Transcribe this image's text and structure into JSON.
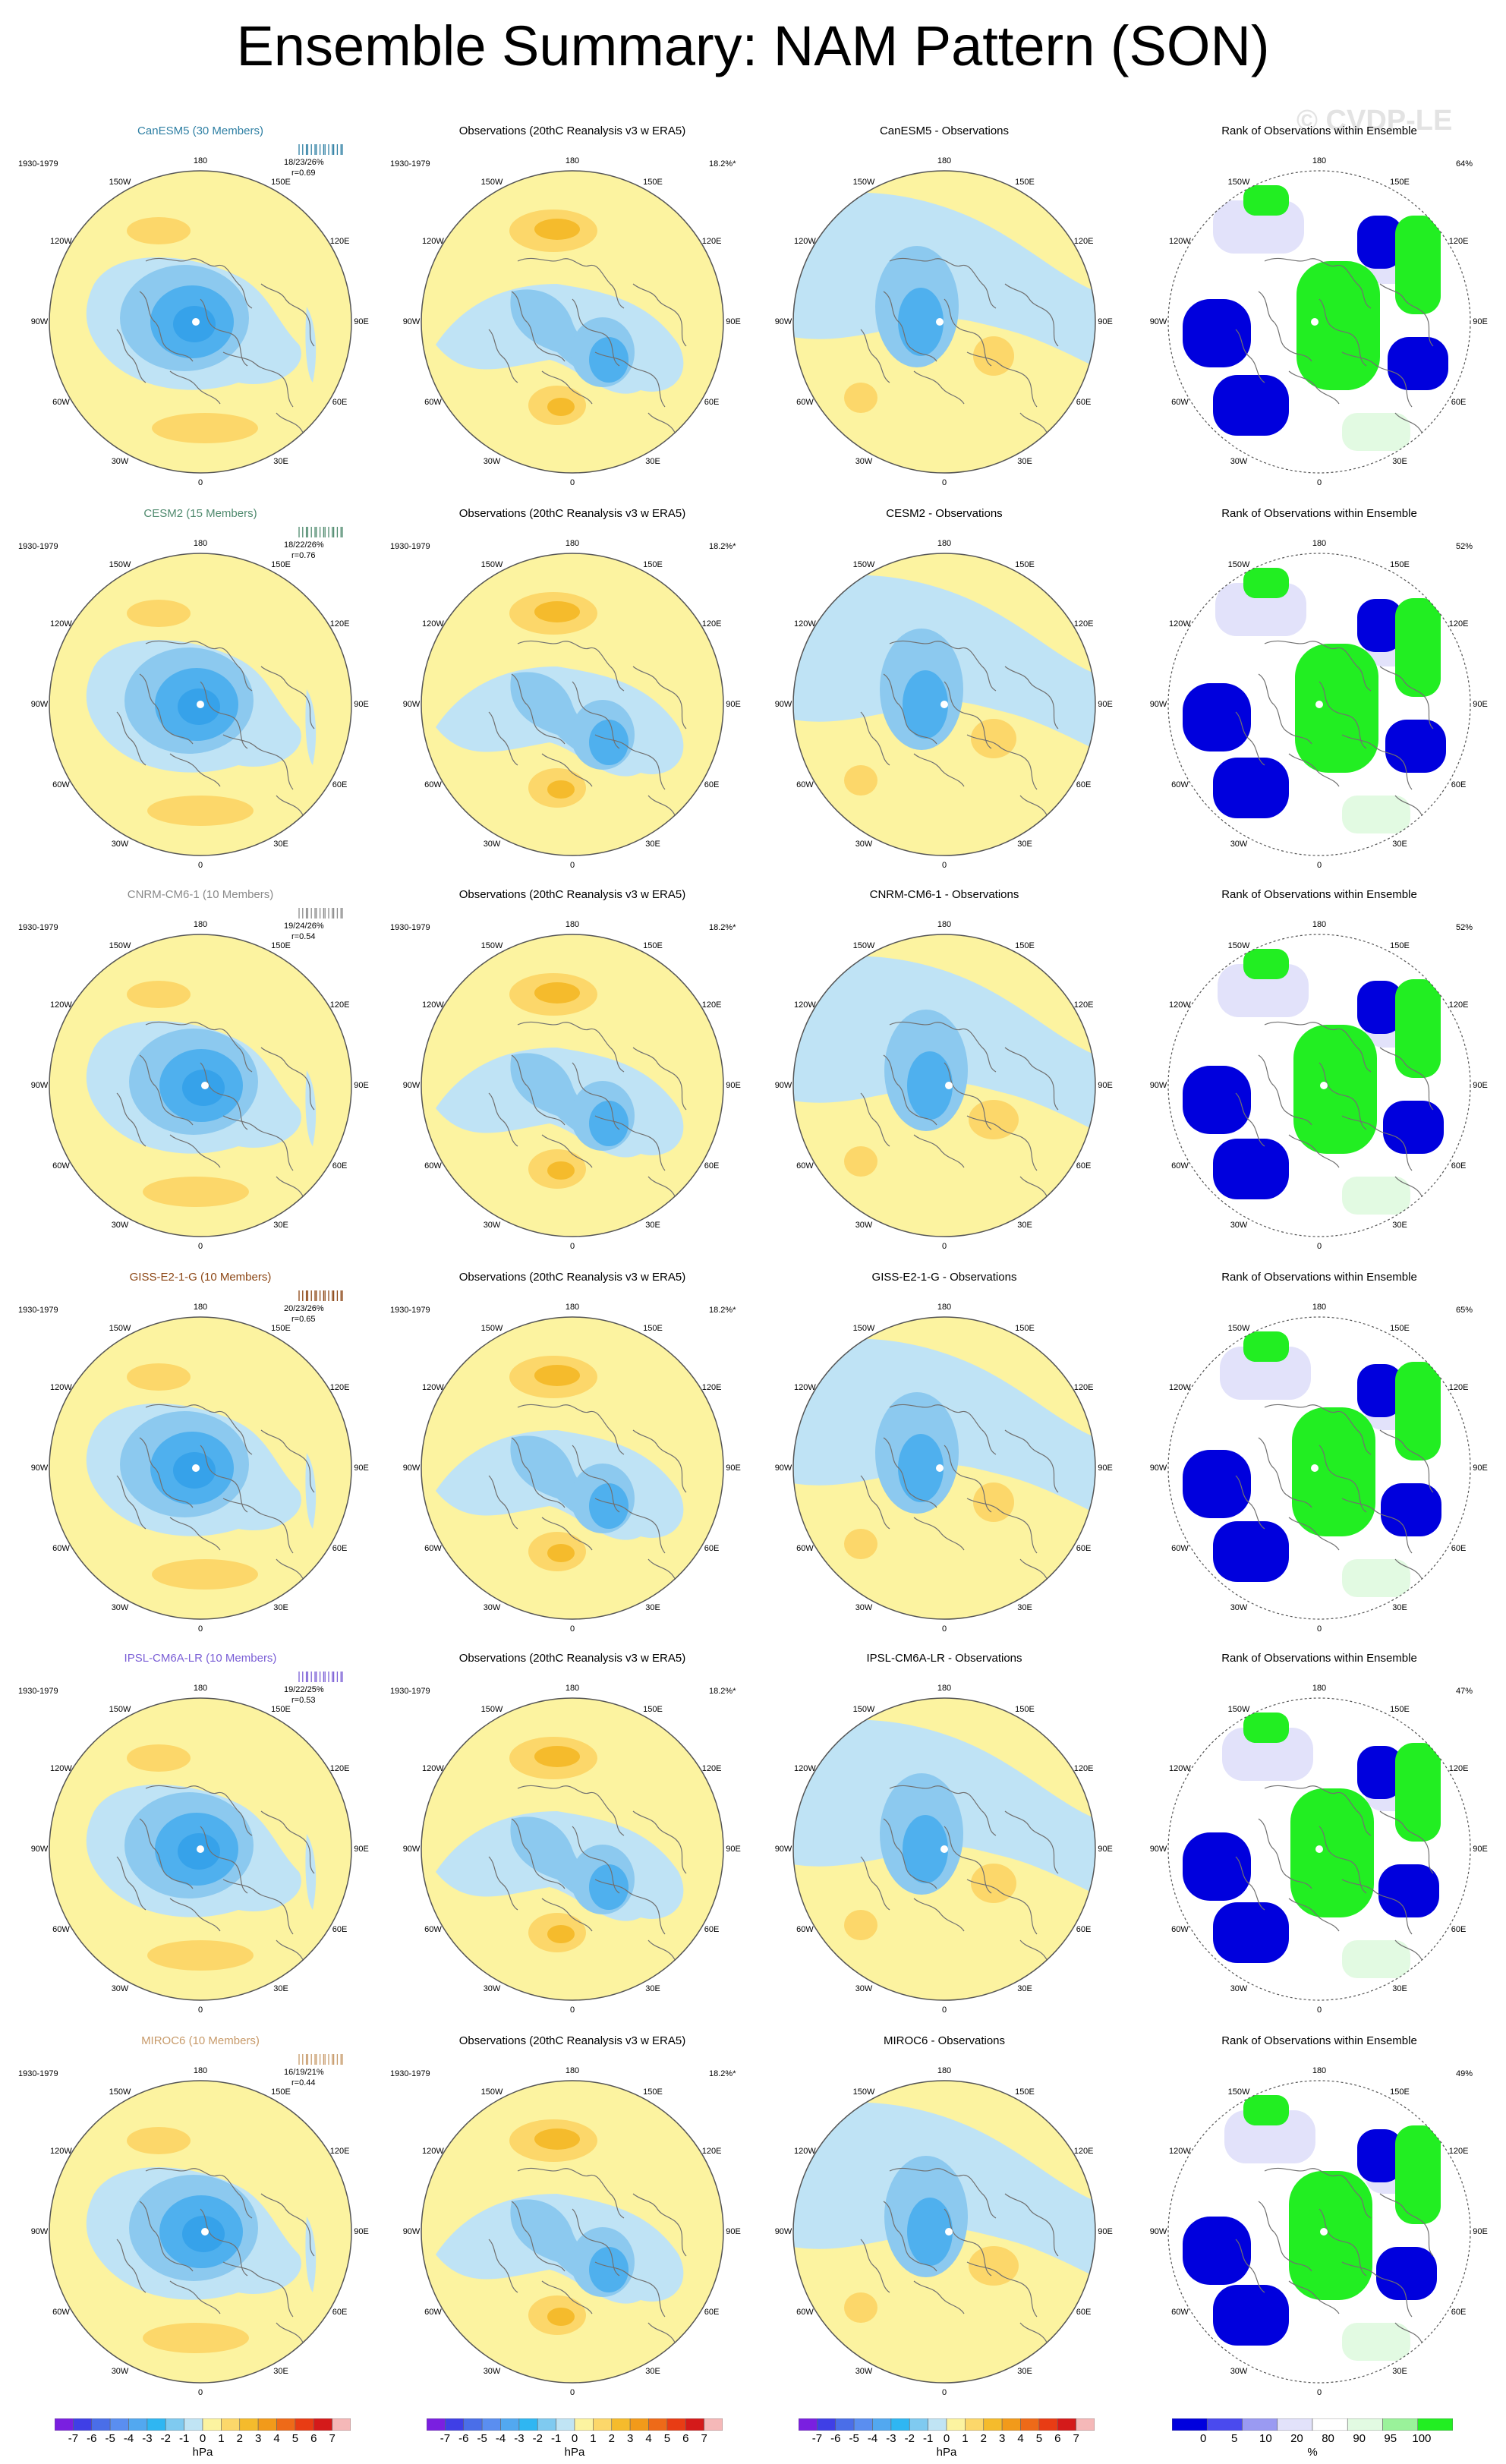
{
  "title": "Ensemble Summary: NAM Pattern (SON)",
  "watermark": "© CVDP-LE",
  "lon_labels": {
    "top": "180",
    "bottom": "0",
    "left_upper1": "150W",
    "left_upper2": "120W",
    "left_mid": "90W",
    "left_lower2": "60W",
    "left_lower1": "30W",
    "right_upper1": "150E",
    "right_upper2": "120E",
    "right_mid": "90E",
    "right_lower2": "60E",
    "right_lower1": "30E"
  },
  "column_titles": {
    "obs": "Observations (20thC Reanalysis v3 w ERA5)",
    "rank": "Rank of Observations within Ensemble"
  },
  "obs_stat": "18.2%*",
  "rows": [
    {
      "model": "CanESM5 (30 Members)",
      "model_color": "#2e7fa3",
      "period": "1930-1979",
      "stat_pct": "18/23/26%",
      "stat_r": "r=0.69",
      "diff_title": "CanESM5 - Observations",
      "rank_pct": "64%"
    },
    {
      "model": "CESM2 (15 Members)",
      "model_color": "#4f8a6e",
      "period": "1930-1979",
      "stat_pct": "18/22/26%",
      "stat_r": "r=0.76",
      "diff_title": "CESM2 - Observations",
      "rank_pct": "52%"
    },
    {
      "model": "CNRM-CM6-1 (10 Members)",
      "model_color": "#8a8a8a",
      "period": "1930-1979",
      "stat_pct": "19/24/26%",
      "stat_r": "r=0.54",
      "diff_title": "CNRM-CM6-1 - Observations",
      "rank_pct": "52%"
    },
    {
      "model": "GISS-E2-1-G (10 Members)",
      "model_color": "#8b4513",
      "period": "1930-1979",
      "stat_pct": "20/23/26%",
      "stat_r": "r=0.65",
      "diff_title": "GISS-E2-1-G - Observations",
      "rank_pct": "65%"
    },
    {
      "model": "IPSL-CM6A-LR (10 Members)",
      "model_color": "#7b5fd6",
      "period": "1930-1979",
      "stat_pct": "19/22/25%",
      "stat_r": "r=0.53",
      "diff_title": "IPSL-CM6A-LR - Observations",
      "rank_pct": "47%"
    },
    {
      "model": "MIROC6 (10 Members)",
      "model_color": "#c79a6a",
      "period": "1930-1979",
      "stat_pct": "16/19/21%",
      "stat_r": "r=0.44",
      "diff_title": "MIROC6 - Observations",
      "rank_pct": "49%"
    }
  ],
  "colorbar_hpa": {
    "labels": [
      "-7",
      "-6",
      "-5",
      "-4",
      "-3",
      "-2",
      "-1",
      "0",
      "1",
      "2",
      "3",
      "4",
      "5",
      "6",
      "7"
    ],
    "colors": [
      "#7a1fe0",
      "#3f3fe6",
      "#4a6ee8",
      "#5a8ef0",
      "#52a8f0",
      "#2fb6f2",
      "#7fcaf0",
      "#c0e4f4",
      "#fcf3a0",
      "#fcd76a",
      "#f5bb2c",
      "#f29a1a",
      "#ee6a18",
      "#e83c14",
      "#d41a1a",
      "#f5b8b8"
    ],
    "unit": "hPa"
  },
  "colorbar_rank": {
    "labels": [
      "0",
      "5",
      "10",
      "20",
      "80",
      "90",
      "95",
      "100"
    ],
    "colors": [
      "#0000dd",
      "#4a4aee",
      "#9a9af2",
      "#e2e2fa",
      "#ffffff",
      "#e2fae2",
      "#9af29a",
      "#22ee22"
    ],
    "unit": "%"
  }
}
